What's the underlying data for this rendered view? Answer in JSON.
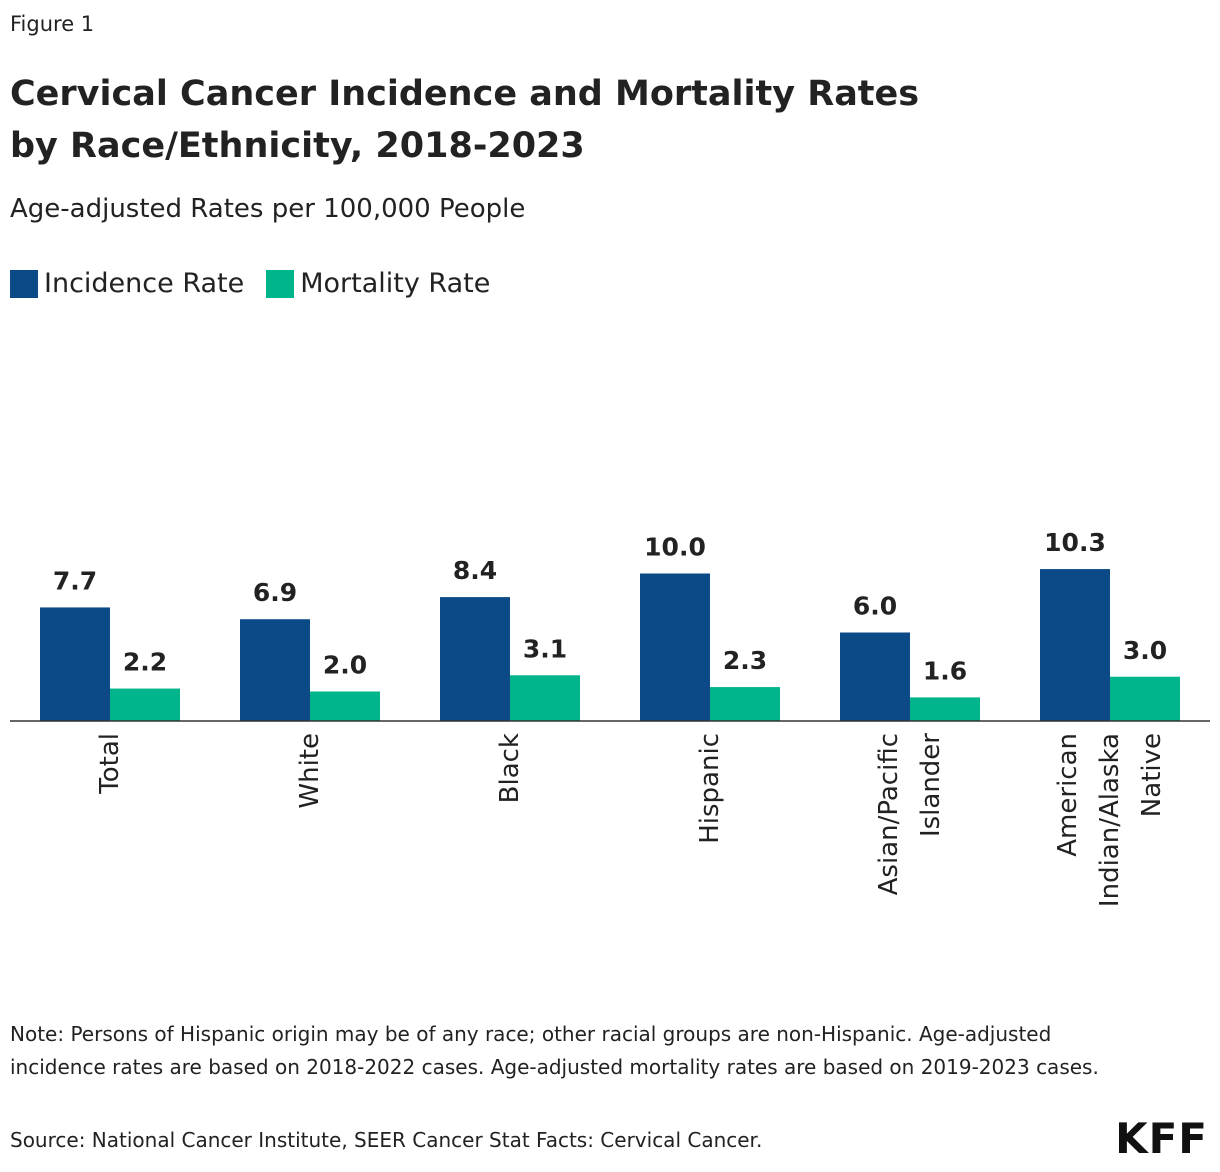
{
  "figure_label": "Figure 1",
  "chart_data": {
    "type": "bar",
    "title": "Cervical Cancer Incidence and Mortality Rates by Race/Ethnicity, 2018-2023",
    "subtitle": "Age-adjusted Rates per 100,000 People",
    "categories": [
      "Total",
      "White",
      "Black",
      "Hispanic",
      "Asian/Pacific Islander",
      "American Indian/Alaska Native"
    ],
    "series": [
      {
        "name": "Incidence Rate",
        "color": "#0b4a86",
        "values": [
          7.7,
          6.9,
          8.4,
          10.0,
          6.0,
          10.3
        ],
        "value_labels": [
          "7.7",
          "6.9",
          "8.4",
          "10.0",
          "6.0",
          "10.3"
        ]
      },
      {
        "name": "Mortality Rate",
        "color": "#00b48b",
        "values": [
          2.2,
          2.0,
          3.1,
          2.3,
          1.6,
          3.0
        ],
        "value_labels": [
          "2.2",
          "2.0",
          "3.1",
          "2.3",
          "1.6",
          "3.0"
        ]
      }
    ],
    "ylim": [
      0,
      20
    ],
    "legend": "top-left"
  },
  "note": "Note: Persons of Hispanic origin may be of any race; other racial groups are non-Hispanic. Age-adjusted incidence rates are based on 2018-2022 cases. Age-adjusted mortality rates are based on 2019-2023 cases.",
  "source": "Source: National Cancer Institute, SEER Cancer Stat Facts: Cervical Cancer.",
  "logo": "KFF"
}
